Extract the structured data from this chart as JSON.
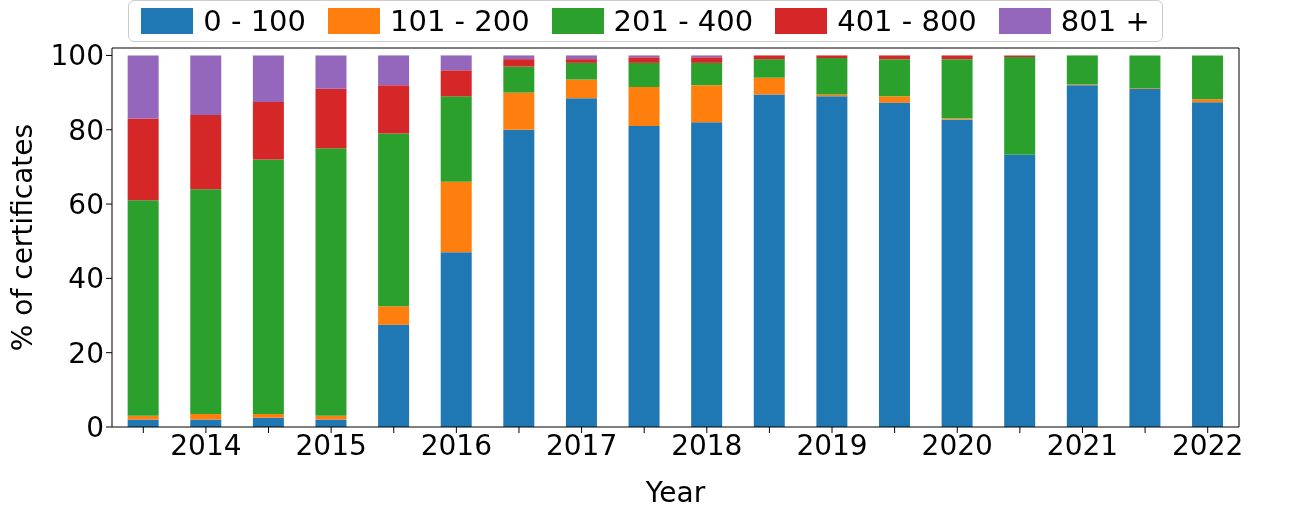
{
  "chart_data": {
    "type": "bar",
    "stacked": true,
    "xlabel": "Year",
    "ylabel": "% of certificates",
    "categories": [
      null,
      "2014",
      null,
      "2015",
      null,
      "2016",
      null,
      "2017",
      null,
      "2018",
      null,
      "2019",
      null,
      "2020",
      null,
      "2021",
      null,
      "2022"
    ],
    "ylim": [
      0,
      102
    ],
    "yticks": [
      0,
      20,
      40,
      60,
      80,
      100
    ],
    "grid": false,
    "legend": "top",
    "series": [
      {
        "name": "0 - 100",
        "color": "#1f77b4",
        "values": [
          2,
          2,
          2.5,
          2,
          27.5,
          47,
          80,
          88.5,
          81,
          82,
          89.5,
          89,
          87.3,
          82.7,
          73.3,
          92,
          91,
          87.4
        ]
      },
      {
        "name": "101 - 200",
        "color": "#ff7f0e",
        "values": [
          1,
          1.5,
          1,
          1,
          5,
          19,
          10,
          5,
          10.5,
          10,
          4.5,
          0.5,
          1.7,
          0.3,
          0,
          0.2,
          0.2,
          0.8
        ]
      },
      {
        "name": "201 - 400",
        "color": "#2ca02c",
        "values": [
          58,
          60.5,
          68.5,
          72,
          46.5,
          23,
          7,
          4.5,
          6.5,
          6,
          5,
          9.8,
          10,
          16,
          26.3,
          7.8,
          8.8,
          11.8
        ]
      },
      {
        "name": "401 - 800",
        "color": "#d62728",
        "values": [
          22,
          20,
          15.5,
          16,
          13,
          7,
          2,
          1,
          1.5,
          1.5,
          1,
          0.7,
          1,
          1,
          0.4,
          0,
          0,
          0
        ]
      },
      {
        "name": "801 +",
        "color": "#9467bd",
        "values": [
          17,
          16,
          12.5,
          9,
          8,
          4,
          1,
          1,
          0.5,
          0.5,
          0,
          0,
          0,
          0,
          0,
          0,
          0,
          0
        ]
      }
    ]
  }
}
